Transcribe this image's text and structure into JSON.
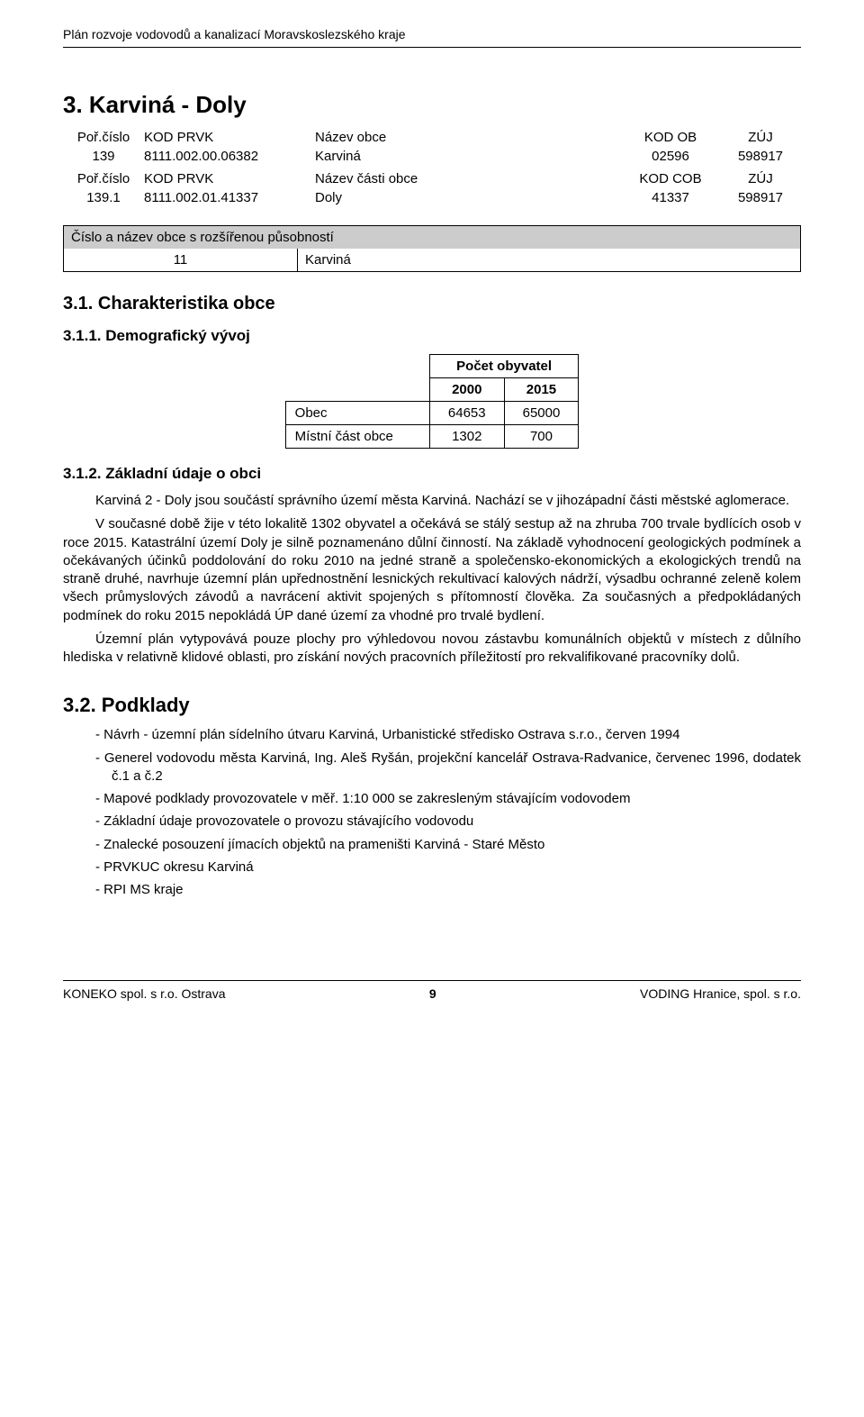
{
  "header": "Plán rozvoje vodovodů a kanalizací Moravskoslezského kraje",
  "title": "3. Karviná - Doly",
  "meta1": {
    "headers": [
      "Poř.číslo",
      "KOD PRVK",
      "Název obce",
      "KOD OB",
      "ZÚJ"
    ],
    "row": [
      "139",
      "8111.002.00.06382",
      "Karviná",
      "02596",
      "598917"
    ]
  },
  "meta2": {
    "headers": [
      "Poř.číslo",
      "KOD PRVK",
      "Název části obce",
      "KOD COB",
      "ZÚJ"
    ],
    "row": [
      "139.1",
      "8111.002.01.41337",
      "Doly",
      "41337",
      "598917"
    ]
  },
  "scope": {
    "title": "Číslo a název obce s rozšířenou působností",
    "num": "11",
    "name": "Karviná"
  },
  "s31_title": "3.1.  Charakteristika obce",
  "s311_title": "3.1.1. Demografický vývoj",
  "demo": {
    "col_header": "Počet obyvatel",
    "years": [
      "2000",
      "2015"
    ],
    "rows": [
      {
        "label": "Obec",
        "v1": "64653",
        "v2": "65000"
      },
      {
        "label": "Místní část obce",
        "v1": "1302",
        "v2": "700"
      }
    ]
  },
  "s312_title": "3.1.2. Základní údaje o obci",
  "p1": "Karviná 2 - Doly jsou součástí správního území města Karviná. Nachází se v jihozápadní části městské aglomerace.",
  "p2": "V současné době žije v této lokalitě 1302 obyvatel a očekává se stálý sestup až na zhruba 700 trvale bydlících osob v roce 2015. Katastrální území Doly je silně poznamenáno důlní činností. Na základě vyhodnocení geologických podmínek a očekávaných účinků poddolování do roku 2010 na jedné straně a společensko-ekonomických a ekologických trendů na straně druhé, navrhuje územní plán upřednostnění lesnických rekultivací kalových nádrží, výsadbu ochranné zeleně kolem všech průmyslových závodů a navrácení aktivit spojených s přítomností člověka. Za současných a předpokládaných podmínek do roku 2015 nepokládá ÚP dané území za vhodné pro trvalé bydlení.",
  "p3": "Územní plán vytypovává pouze plochy pro výhledovou novou zástavbu komunálních objektů v místech z důlního hlediska v relativně klidové oblasti, pro získání nových pracovních příležitostí pro rekvalifikované pracovníky dolů.",
  "s32_title": "3.2.  Podklady",
  "refs": [
    "- Návrh - územní plán sídelního útvaru Karviná, Urbanistické středisko Ostrava s.r.o., červen 1994",
    "- Generel vodovodu města Karviná, Ing. Aleš Ryšán, projekční kancelář Ostrava-Radvanice, červenec 1996, dodatek č.1 a č.2",
    "- Mapové podklady provozovatele v měř. 1:10 000 se zakresleným stávajícím vodovodem",
    "- Základní údaje provozovatele o provozu stávajícího vodovodu",
    "- Znalecké posouzení jímacích objektů na prameništi Karviná - Staré Město",
    "- PRVKUC okresu Karviná",
    "- RPI MS kraje"
  ],
  "footer": {
    "left": "KONEKO spol. s r.o. Ostrava",
    "page": "9",
    "right": "VODING Hranice, spol. s r.o."
  }
}
